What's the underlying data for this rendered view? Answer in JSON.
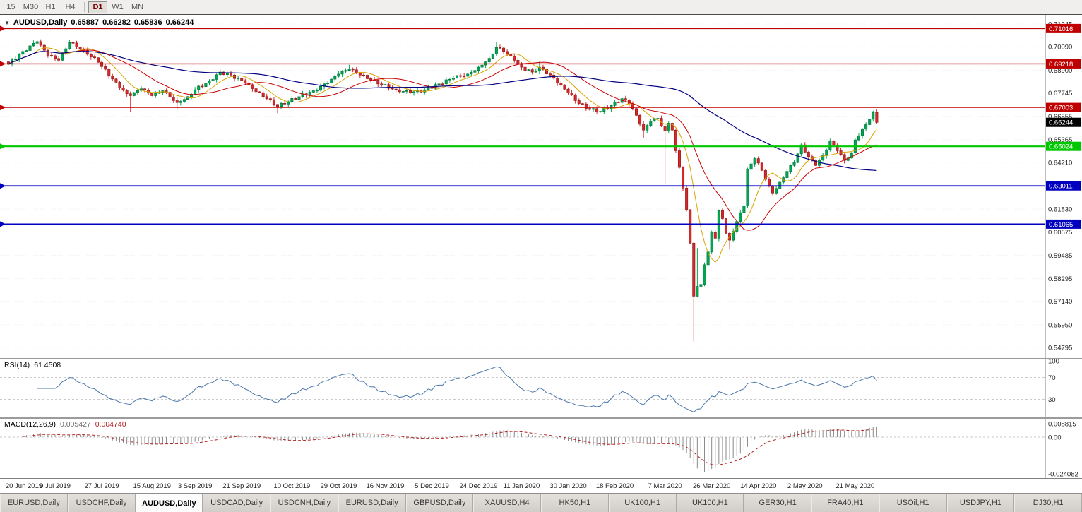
{
  "toolbar": {
    "timeframes": [
      "15",
      "M30",
      "H1",
      "H4",
      "D1",
      "W1",
      "MN"
    ],
    "active": "D1"
  },
  "chart": {
    "header": {
      "dropdown_glyph": "▼",
      "symbol": "AUDUSD,Daily",
      "open": "0.65887",
      "high": "0.66282",
      "low": "0.65836",
      "close": "0.66244"
    }
  },
  "indicators": {
    "rsi": {
      "name": "RSI(14)",
      "value": "61.4508"
    },
    "macd": {
      "name": "MACD(12,26,9)",
      "value_main": "0.005427",
      "value_signal": "0.004740"
    }
  },
  "theme": {
    "up": "#00a651",
    "up_border": "#00703a",
    "down": "#d62828",
    "down_border": "#8c1a1a",
    "ma_fast": "#d9a300",
    "ma_medium": "#cc0000",
    "ma_slow": "#000080",
    "macd_hist": "#8a8a8a",
    "macd_signal": "#b22222",
    "grid": "#f0f0f0",
    "axis_border": "#808080"
  },
  "chart_data": {
    "type": "candlestick",
    "title": "AUDUSD,Daily",
    "symbol": "AUDUSD",
    "timeframe": "Daily",
    "last_bar_ohlc": {
      "open": 0.65887,
      "high": 0.66282,
      "low": 0.65836,
      "close": 0.66244
    },
    "y_axis": {
      "ticks": [
        "0.71245",
        "0.70090",
        "0.68900",
        "0.67745",
        "0.66555",
        "0.65365",
        "0.64210",
        "0.63020",
        "0.61830",
        "0.60675",
        "0.59485",
        "0.58295",
        "0.57140",
        "0.55950",
        "0.54795"
      ]
    },
    "x_axis": {
      "ticks": [
        {
          "i": 0,
          "label": "20 Jun 2019"
        },
        {
          "i": 13,
          "label": "9 Jul 2019"
        },
        {
          "i": 26,
          "label": "27 Jul 2019"
        },
        {
          "i": 40,
          "label": "15 Aug 2019"
        },
        {
          "i": 52,
          "label": "3 Sep 2019"
        },
        {
          "i": 65,
          "label": "21 Sep 2019"
        },
        {
          "i": 79,
          "label": "10 Oct 2019"
        },
        {
          "i": 92,
          "label": "29 Oct 2019"
        },
        {
          "i": 105,
          "label": "16 Nov 2019"
        },
        {
          "i": 118,
          "label": "5 Dec 2019"
        },
        {
          "i": 131,
          "label": "24 Dec 2019"
        },
        {
          "i": 143,
          "label": "11 Jan 2020"
        },
        {
          "i": 156,
          "label": "30 Jan 2020"
        },
        {
          "i": 169,
          "label": "18 Feb 2020"
        },
        {
          "i": 183,
          "label": "7 Mar 2020"
        },
        {
          "i": 196,
          "label": "26 Mar 2020"
        },
        {
          "i": 209,
          "label": "14 Apr 2020"
        },
        {
          "i": 222,
          "label": "2 May 2020"
        },
        {
          "i": 236,
          "label": "21 May 2020"
        }
      ]
    },
    "levels": [
      {
        "price": 0.71016,
        "label": "0.71016",
        "color": "#c00000",
        "width": 1.4
      },
      {
        "price": 0.69218,
        "label": "0.69218",
        "color": "#c00000",
        "width": 1.4
      },
      {
        "price": 0.67003,
        "label": "0.67003",
        "color": "#c00000",
        "width": 1.4
      },
      {
        "price": 0.65024,
        "label": "0.65024",
        "color": "#00c800",
        "width": 2.2
      },
      {
        "price": 0.63011,
        "label": "0.63011",
        "color": "#0000c0",
        "width": 1.8
      },
      {
        "price": 0.61065,
        "label": "0.61065",
        "color": "#0000c0",
        "width": 1.8
      }
    ],
    "current_price": {
      "value": 0.66244,
      "label": "0.66244",
      "box_color": "#000000"
    },
    "num_candles": 243,
    "close_anchors": [
      [
        0,
        0.692
      ],
      [
        4,
        0.6985
      ],
      [
        8,
        0.7035
      ],
      [
        11,
        0.6965
      ],
      [
        14,
        0.694
      ],
      [
        17,
        0.703
      ],
      [
        21,
        0.699
      ],
      [
        25,
        0.693
      ],
      [
        29,
        0.6845
      ],
      [
        31,
        0.68
      ],
      [
        33,
        0.677
      ],
      [
        34,
        0.676
      ],
      [
        37,
        0.6795
      ],
      [
        40,
        0.676
      ],
      [
        43,
        0.6785
      ],
      [
        47,
        0.6725
      ],
      [
        50,
        0.6755
      ],
      [
        52,
        0.679
      ],
      [
        56,
        0.6835
      ],
      [
        59,
        0.688
      ],
      [
        62,
        0.6865
      ],
      [
        66,
        0.6825
      ],
      [
        69,
        0.678
      ],
      [
        72,
        0.6745
      ],
      [
        75,
        0.6705
      ],
      [
        78,
        0.673
      ],
      [
        81,
        0.6755
      ],
      [
        85,
        0.6785
      ],
      [
        89,
        0.6825
      ],
      [
        92,
        0.687
      ],
      [
        95,
        0.6895
      ],
      [
        98,
        0.6865
      ],
      [
        101,
        0.684
      ],
      [
        104,
        0.6815
      ],
      [
        108,
        0.679
      ],
      [
        112,
        0.6775
      ],
      [
        116,
        0.679
      ],
      [
        120,
        0.682
      ],
      [
        124,
        0.685
      ],
      [
        128,
        0.687
      ],
      [
        131,
        0.6905
      ],
      [
        134,
        0.695
      ],
      [
        136,
        0.7005
      ],
      [
        138,
        0.6985
      ],
      [
        141,
        0.694
      ],
      [
        143,
        0.6905
      ],
      [
        146,
        0.688
      ],
      [
        148,
        0.6905
      ],
      [
        151,
        0.6865
      ],
      [
        154,
        0.6815
      ],
      [
        156,
        0.6775
      ],
      [
        159,
        0.672
      ],
      [
        162,
        0.669
      ],
      [
        165,
        0.668
      ],
      [
        168,
        0.671
      ],
      [
        171,
        0.6745
      ],
      [
        173,
        0.672
      ],
      [
        175,
        0.666
      ],
      [
        177,
        0.6585
      ],
      [
        179,
        0.663
      ],
      [
        181,
        0.6645
      ],
      [
        183,
        0.658
      ],
      [
        184,
        0.662
      ],
      [
        185,
        0.6585
      ],
      [
        186,
        0.648
      ],
      [
        187,
        0.6395
      ],
      [
        188,
        0.629
      ],
      [
        189,
        0.618
      ],
      [
        190,
        0.601
      ],
      [
        191,
        0.574
      ],
      [
        192,
        0.579
      ],
      [
        193,
        0.58
      ],
      [
        194,
        0.59
      ],
      [
        195,
        0.5965
      ],
      [
        196,
        0.6065
      ],
      [
        197,
        0.6035
      ],
      [
        198,
        0.6175
      ],
      [
        199,
        0.6135
      ],
      [
        200,
        0.606
      ],
      [
        201,
        0.6025
      ],
      [
        202,
        0.607
      ],
      [
        203,
        0.612
      ],
      [
        204,
        0.6165
      ],
      [
        205,
        0.62
      ],
      [
        206,
        0.6385
      ],
      [
        208,
        0.644
      ],
      [
        210,
        0.638
      ],
      [
        212,
        0.63
      ],
      [
        213,
        0.6265
      ],
      [
        215,
        0.632
      ],
      [
        217,
        0.6375
      ],
      [
        219,
        0.642
      ],
      [
        221,
        0.651
      ],
      [
        223,
        0.645
      ],
      [
        225,
        0.6405
      ],
      [
        227,
        0.6455
      ],
      [
        229,
        0.653
      ],
      [
        231,
        0.648
      ],
      [
        233,
        0.643
      ],
      [
        235,
        0.647
      ],
      [
        236,
        0.6535
      ],
      [
        238,
        0.659
      ],
      [
        240,
        0.664
      ],
      [
        241,
        0.6675
      ],
      [
        242,
        0.6624
      ]
    ],
    "wick_highs": {
      "8": 0.7046,
      "17": 0.7044,
      "95": 0.6917,
      "136": 0.7032,
      "148": 0.6933,
      "192": 0.5985,
      "241": 0.6684
    },
    "wick_lows": {
      "34": 0.6677,
      "47": 0.6688,
      "75": 0.6671,
      "177": 0.6543,
      "183": 0.6313,
      "191": 0.551,
      "201": 0.598,
      "213": 0.6253
    },
    "rsi": {
      "period": 14,
      "value": 61.4508,
      "levels": [
        70,
        30
      ],
      "scale_labels": [
        "100",
        "70",
        "30"
      ],
      "color": "#4a77ab"
    },
    "macd": {
      "params": [
        12,
        26,
        9
      ],
      "value": 0.005427,
      "signal": 0.00474,
      "scale_labels": [
        "0.008815",
        "0.00",
        "-0.024082"
      ]
    }
  },
  "tabs": [
    {
      "label": "EURUSD,Daily",
      "active": false
    },
    {
      "label": "USDCHF,Daily",
      "active": false
    },
    {
      "label": "AUDUSD,Daily",
      "active": true
    },
    {
      "label": "USDCAD,Daily",
      "active": false
    },
    {
      "label": "USDCNH,Daily",
      "active": false
    },
    {
      "label": "EURUSD,Daily",
      "active": false
    },
    {
      "label": "GBPUSD,Daily",
      "active": false
    },
    {
      "label": "XAUUSD,H4",
      "active": false
    },
    {
      "label": "HK50,H1",
      "active": false
    },
    {
      "label": "UK100,H1",
      "active": false
    },
    {
      "label": "UK100,H1",
      "active": false
    },
    {
      "label": "GER30,H1",
      "active": false
    },
    {
      "label": "FRA40,H1",
      "active": false
    },
    {
      "label": "USOil,H1",
      "active": false
    },
    {
      "label": "USDJPY,H1",
      "active": false
    },
    {
      "label": "DJ30,H1",
      "active": false
    }
  ]
}
